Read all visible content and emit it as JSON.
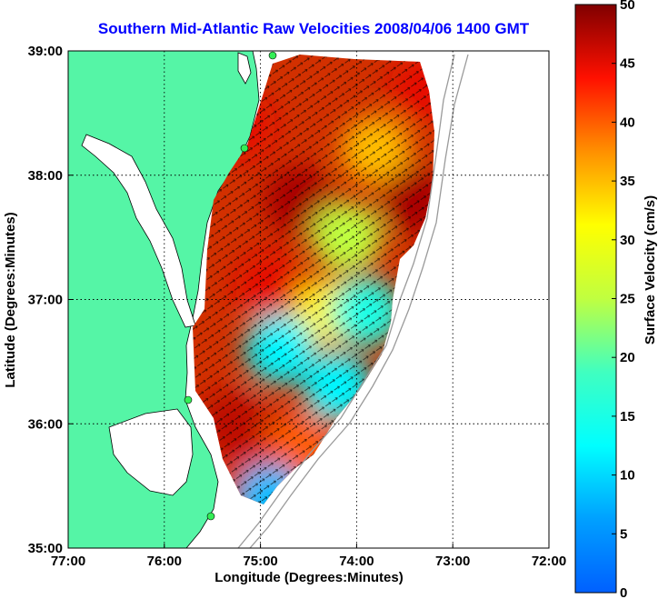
{
  "chart_data": {
    "type": "heatmap",
    "title": "Southern Mid-Atlantic Raw Velocities 2008/04/06 1400 GMT",
    "xlabel": "Longitude (Degrees:Minutes)",
    "ylabel": "Latitude (Degrees:Minutes)",
    "colorbar_label": "Surface Velocity (cm/s)",
    "x_ticks": [
      "77:00",
      "76:00",
      "75:00",
      "74:00",
      "73:00",
      "72:00"
    ],
    "y_ticks": [
      "39:00",
      "38:00",
      "37:00",
      "36:00",
      "35:00"
    ],
    "colorbar_ticks": [
      "50",
      "45",
      "40",
      "35",
      "30",
      "25",
      "20",
      "15",
      "10",
      "5",
      "0"
    ],
    "xlim": [
      -77,
      -72
    ],
    "ylim": [
      35,
      39
    ],
    "clim": [
      0,
      50
    ],
    "colormap": "jet",
    "grid": true,
    "land_color": "#55f5a6",
    "title_color": "#0000ff",
    "velocity_regions": [
      {
        "lon": -75.2,
        "lat": 38.4,
        "speed": 45
      },
      {
        "lon": -74.6,
        "lat": 37.8,
        "speed": 48
      },
      {
        "lon": -73.8,
        "lat": 38.2,
        "speed": 35
      },
      {
        "lon": -73.4,
        "lat": 37.8,
        "speed": 48
      },
      {
        "lon": -73.3,
        "lat": 38.7,
        "speed": 45
      },
      {
        "lon": -74.1,
        "lat": 37.5,
        "speed": 25
      },
      {
        "lon": -74.9,
        "lat": 37.1,
        "speed": 45
      },
      {
        "lon": -74.3,
        "lat": 36.9,
        "speed": 32
      },
      {
        "lon": -73.9,
        "lat": 36.9,
        "speed": 15
      },
      {
        "lon": -74.8,
        "lat": 36.6,
        "speed": 12
      },
      {
        "lon": -74.2,
        "lat": 36.3,
        "speed": 12
      },
      {
        "lon": -75.3,
        "lat": 36.0,
        "speed": 47
      },
      {
        "lon": -74.6,
        "lat": 35.8,
        "speed": 40
      },
      {
        "lon": -75.0,
        "lat": 35.5,
        "speed": 45
      },
      {
        "lon": -74.9,
        "lat": 35.4,
        "speed": 8
      }
    ]
  }
}
